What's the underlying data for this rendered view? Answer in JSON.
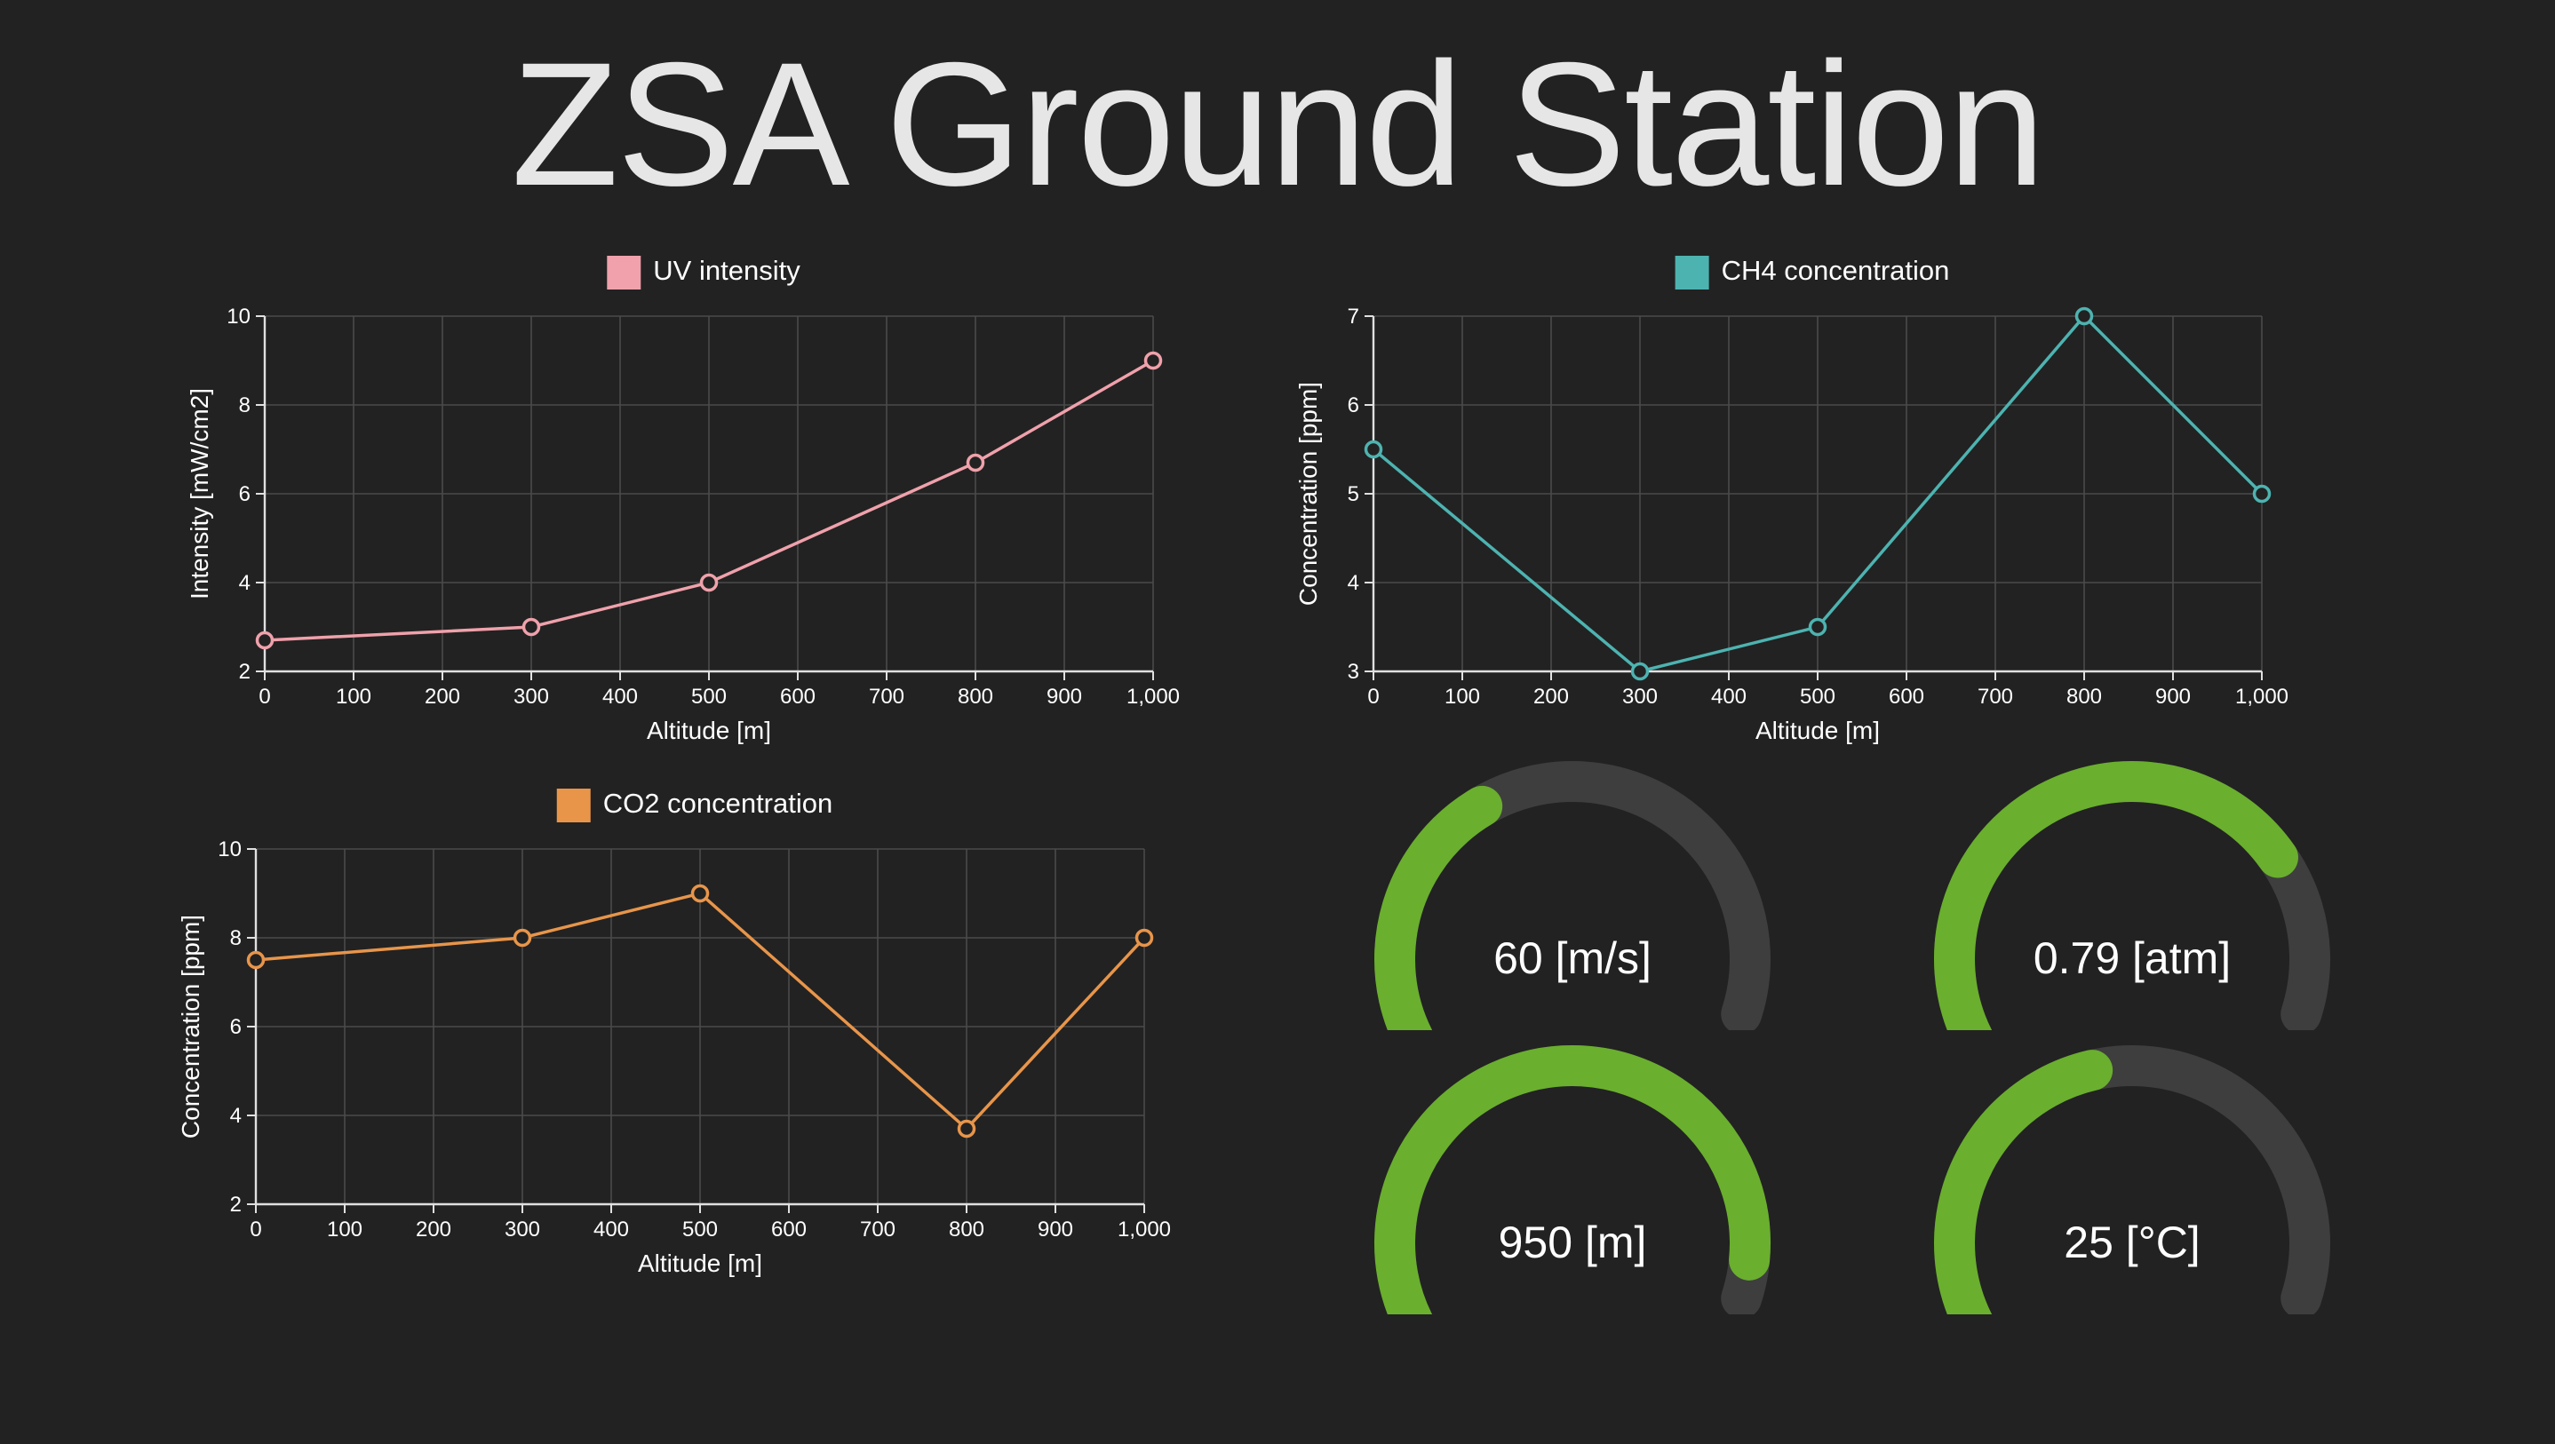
{
  "title": "ZSA Ground Station",
  "colors": {
    "background": "#222222",
    "grid": "#4a4a4a",
    "axis": "#e0e0e0",
    "gauge_fill": "#6aaf2e",
    "gauge_track": "#3e3e3e"
  },
  "chart_data": [
    {
      "type": "line",
      "legend": "UV intensity",
      "color": "#f0a1ab",
      "xlabel": "Altitude [m]",
      "ylabel": "Intensity [mW/cm2]",
      "xlim": [
        0,
        1000
      ],
      "ylim": [
        2,
        10
      ],
      "xticks": [
        0,
        100,
        200,
        300,
        400,
        500,
        600,
        700,
        800,
        900,
        1000
      ],
      "xtick_labels": [
        "0",
        "100",
        "200",
        "300",
        "400",
        "500",
        "600",
        "700",
        "800",
        "900",
        "1,000"
      ],
      "yticks": [
        2,
        4,
        6,
        8,
        10
      ],
      "ytick_labels": [
        "2",
        "4",
        "6",
        "8",
        "10"
      ],
      "grid": true,
      "legend_position": "top-center",
      "x": [
        0,
        300,
        500,
        800,
        1000
      ],
      "y": [
        2.7,
        3.0,
        4.0,
        6.7,
        9.0
      ]
    },
    {
      "type": "line",
      "legend": "CH4 concentration",
      "color": "#4db3b0",
      "xlabel": "Altitude [m]",
      "ylabel": "Concentration [ppm]",
      "xlim": [
        0,
        1000
      ],
      "ylim": [
        3,
        7
      ],
      "xticks": [
        0,
        100,
        200,
        300,
        400,
        500,
        600,
        700,
        800,
        900,
        1000
      ],
      "xtick_labels": [
        "0",
        "100",
        "200",
        "300",
        "400",
        "500",
        "600",
        "700",
        "800",
        "900",
        "1,000"
      ],
      "yticks": [
        3,
        4,
        5,
        6,
        7
      ],
      "ytick_labels": [
        "3",
        "4",
        "5",
        "6",
        "7"
      ],
      "grid": true,
      "legend_position": "top-center",
      "x": [
        0,
        300,
        500,
        800,
        1000
      ],
      "y": [
        5.5,
        3.0,
        3.5,
        7.0,
        5.0
      ]
    },
    {
      "type": "line",
      "legend": "CO2 concentration",
      "color": "#e8954a",
      "xlabel": "Altitude [m]",
      "ylabel": "Concentration [ppm]",
      "xlim": [
        0,
        1000
      ],
      "ylim": [
        2,
        10
      ],
      "xticks": [
        0,
        100,
        200,
        300,
        400,
        500,
        600,
        700,
        800,
        900,
        1000
      ],
      "xtick_labels": [
        "0",
        "100",
        "200",
        "300",
        "400",
        "500",
        "600",
        "700",
        "800",
        "900",
        "1,000"
      ],
      "yticks": [
        2,
        4,
        6,
        8,
        10
      ],
      "ytick_labels": [
        "2",
        "4",
        "6",
        "8",
        "10"
      ],
      "grid": true,
      "legend_position": "top-center",
      "x": [
        0,
        300,
        500,
        800,
        1000
      ],
      "y": [
        7.5,
        8.0,
        9.0,
        3.7,
        8.0
      ]
    }
  ],
  "gauges": [
    {
      "label": "60 [m/s]",
      "fraction": 0.45
    },
    {
      "label": "0.79 [atm]",
      "fraction": 0.79
    },
    {
      "label": "950 [m]",
      "fraction": 0.95
    },
    {
      "label": "25 [°C]",
      "fraction": 0.52
    }
  ]
}
